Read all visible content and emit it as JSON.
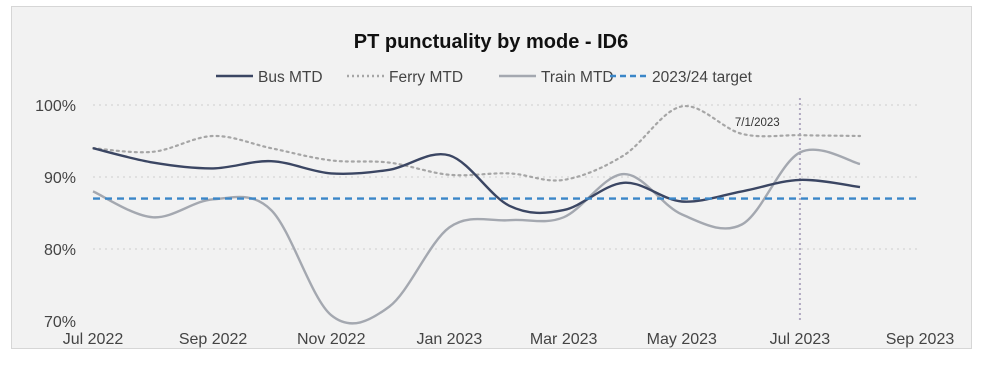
{
  "chart_data": {
    "type": "line",
    "title": "PT punctuality by mode - ID6",
    "xlabel": "",
    "ylabel": "",
    "x_ticks": [
      "Jul 2022",
      "Sep 2022",
      "Nov 2022",
      "Jan 2023",
      "Mar 2023",
      "May 2023",
      "Jul 2023",
      "Sep 2023"
    ],
    "y_ticks": [
      "70%",
      "80%",
      "90%",
      "100%"
    ],
    "xlim": [
      "2022-07-01",
      "2023-09-01"
    ],
    "ylim": [
      70,
      100
    ],
    "grid": true,
    "legend_position": "top-center",
    "annotation": {
      "text": "7/1/2023",
      "x": "2023-07-01"
    },
    "series": [
      {
        "name": "Bus MTD",
        "color": "#3b4663",
        "dash": "solid",
        "x": [
          "2022-07-01",
          "2022-08-01",
          "2022-09-01",
          "2022-10-01",
          "2022-11-01",
          "2022-12-01",
          "2023-01-01",
          "2023-02-01",
          "2023-03-01",
          "2023-04-01",
          "2023-05-01",
          "2023-06-01",
          "2023-07-01",
          "2023-08-01"
        ],
        "values": [
          94.0,
          92.0,
          91.2,
          92.2,
          90.5,
          91.0,
          93.0,
          86.0,
          85.4,
          89.2,
          86.6,
          88.0,
          89.6,
          88.6
        ]
      },
      {
        "name": "Ferry MTD",
        "color": "#a6a6a6",
        "dash": "dotted",
        "x": [
          "2022-07-01",
          "2022-08-01",
          "2022-09-01",
          "2022-10-01",
          "2022-11-01",
          "2022-12-01",
          "2023-01-01",
          "2023-02-01",
          "2023-03-01",
          "2023-04-01",
          "2023-05-01",
          "2023-06-01",
          "2023-07-01",
          "2023-08-01"
        ],
        "values": [
          94.0,
          93.5,
          95.7,
          94.0,
          92.3,
          92.0,
          90.3,
          90.5,
          89.6,
          93.0,
          99.8,
          96.0,
          95.8,
          95.7
        ]
      },
      {
        "name": "Train MTD",
        "color": "#a4a8b0",
        "dash": "solid",
        "x": [
          "2022-07-01",
          "2022-08-01",
          "2022-09-01",
          "2022-10-01",
          "2022-11-01",
          "2022-12-01",
          "2023-01-01",
          "2023-02-01",
          "2023-03-01",
          "2023-04-01",
          "2023-05-01",
          "2023-06-01",
          "2023-07-01",
          "2023-08-01"
        ],
        "values": [
          88.0,
          84.4,
          86.9,
          85.4,
          70.8,
          72.0,
          83.0,
          84.0,
          84.4,
          90.4,
          84.8,
          83.4,
          93.4,
          91.8
        ]
      },
      {
        "name": "2023/24 target",
        "color": "#3a86c8",
        "dash": "dashed",
        "x": [
          "2022-07-01",
          "2023-09-01"
        ],
        "values": [
          87.0,
          87.0
        ]
      }
    ]
  }
}
